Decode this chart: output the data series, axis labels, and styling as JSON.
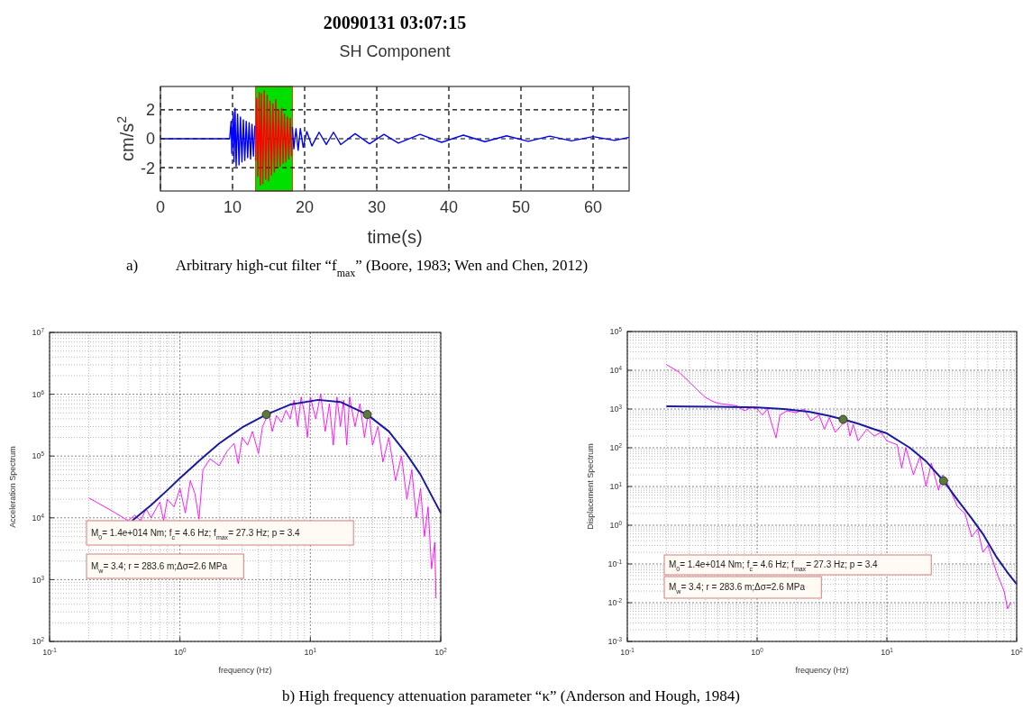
{
  "chart_data": [
    {
      "type": "line",
      "title": "20090131 03:07:15",
      "subtitle": "SH Component",
      "xlabel": "time(s)",
      "ylabel": "cm/s$^{2}$",
      "xlim": [
        0,
        65
      ],
      "ylim": [
        -3.6,
        3.6
      ],
      "xticks": [
        0,
        10,
        20,
        30,
        40,
        50,
        60
      ],
      "yticks": [
        -2,
        0,
        2
      ],
      "grid": true,
      "line_style": "solid",
      "bands": [
        {
          "axis": "x",
          "from": 13.2,
          "to": 18.3,
          "color": "#00e000"
        }
      ],
      "annotations": [
        "a)          Arbitrary high-cut filter “f$_{max}$” (Boore, 1983; Wen and Chen, 2012)"
      ],
      "series": [
        {
          "color": "#0000ff",
          "x": [
            0,
            9.6,
            9.8,
            9.9,
            10.1,
            10.2,
            10.35,
            10.5,
            10.7,
            10.9,
            11.1,
            11.3,
            11.5,
            11.7,
            11.9,
            12.1,
            12.3,
            12.5,
            12.7,
            12.9,
            13.1
          ],
          "values": [
            0,
            0,
            1.2,
            -1.0,
            1.8,
            -1.6,
            2.1,
            -1.9,
            1.7,
            -1.8,
            1.5,
            -1.6,
            1.3,
            -1.5,
            1.2,
            -1.3,
            1.1,
            -1.4,
            1.0,
            -1.2,
            0.9
          ]
        },
        {
          "color": "#ff0000",
          "x": [
            13.2,
            13.35,
            13.5,
            13.7,
            13.85,
            14.0,
            14.2,
            14.4,
            14.6,
            14.8,
            15.0,
            15.2,
            15.4,
            15.6,
            15.8,
            16.0,
            16.2,
            16.4,
            16.6,
            16.8,
            17.0,
            17.2,
            17.4,
            17.6,
            17.8,
            18.0,
            18.2
          ],
          "values": [
            -1.5,
            2.8,
            -2.6,
            3.2,
            -3.2,
            3.1,
            -3.1,
            3.3,
            -2.8,
            3.0,
            -2.9,
            2.6,
            -2.5,
            2.4,
            -2.3,
            2.7,
            -2.0,
            2.0,
            -1.9,
            2.1,
            -1.7,
            1.7,
            -1.6,
            1.5,
            -1.4,
            1.4,
            -1.2
          ]
        },
        {
          "color": "#0000ff",
          "x": [
            18.3,
            18.5,
            18.8,
            19.1,
            19.4,
            19.8,
            20.3,
            21,
            22,
            23,
            24,
            25,
            27,
            29,
            31,
            33,
            36,
            39,
            42,
            45,
            48,
            51,
            54,
            57,
            60,
            63,
            65
          ],
          "values": [
            0.8,
            -0.7,
            0.7,
            -0.8,
            0.7,
            -0.6,
            0.5,
            -0.5,
            0.45,
            -0.4,
            0.45,
            -0.4,
            0.35,
            -0.35,
            0.3,
            -0.3,
            0.3,
            -0.25,
            0.25,
            -0.2,
            0.2,
            -0.18,
            0.18,
            -0.15,
            0.15,
            -0.12,
            0.1
          ]
        }
      ]
    },
    {
      "type": "line",
      "xlabel": "frequency (Hz)",
      "ylabel": "Acceleration Spectrum",
      "log": "xy",
      "grid": true,
      "xlim": [
        0.1,
        100
      ],
      "ylim": [
        100,
        10000000
      ],
      "xticks": [
        {
          "value": 0.1,
          "label": "10$^{-1}$"
        },
        {
          "value": 1,
          "label": "10$^{0}$"
        },
        {
          "value": 10,
          "label": "10$^{1}$"
        },
        {
          "value": 100,
          "label": "10$^{2}$"
        }
      ],
      "yticks": [
        {
          "value": 100,
          "label": "10$^{2}$"
        },
        {
          "value": 1000,
          "label": "10$^{3}$"
        },
        {
          "value": 10000,
          "label": "10$^{4}$"
        },
        {
          "value": 100000,
          "label": "10$^{5}$"
        },
        {
          "value": 1000000,
          "label": "10$^{6}$"
        },
        {
          "value": 10000000,
          "label": "10$^{7}$"
        }
      ],
      "annotations": [
        "M$_{0}$= 1.4e+014 Nm;   f$_{c}$= 4.6 Hz;  f$_{max}$= 27.3 Hz; p = 3.4",
        "M$_{w}$= 3.4; r = 283.6 m;Δσ=2.6 MPa",
        "b) High frequency attenuation parameter “κ” (Anderson and Hough, 1984)"
      ],
      "series": [
        {
          "color": "#ff00ff",
          "x": [
            0.2,
            0.3,
            0.4,
            0.45,
            0.5,
            0.55,
            0.6,
            0.7,
            0.75,
            0.8,
            0.9,
            1.0,
            1.1,
            1.2,
            1.3,
            1.4,
            1.5,
            1.7,
            2.0,
            2.3,
            2.6,
            2.8,
            3.0,
            3.3,
            3.6,
            4.0,
            4.3,
            4.8,
            5.1,
            5.5,
            6,
            6.5,
            7,
            7.5,
            8,
            8.5,
            9,
            9.5,
            10,
            11,
            12,
            13,
            14,
            15,
            16,
            17,
            18,
            19,
            20,
            22,
            24,
            26,
            28,
            30,
            33,
            36,
            40,
            45,
            50,
            55,
            60,
            65,
            70,
            75,
            80,
            85,
            90,
            92
          ],
          "values": [
            21000,
            13000,
            9000,
            11000,
            9000,
            14000,
            10000,
            18000,
            9000,
            20000,
            15000,
            30000,
            12000,
            40000,
            25000,
            9500,
            60000,
            90000,
            70000,
            120000,
            160000,
            75000,
            200000,
            150000,
            250000,
            110000,
            300000,
            500000,
            250000,
            450000,
            350000,
            550000,
            400000,
            800000,
            300000,
            900000,
            500000,
            200000,
            900000,
            400000,
            1000000,
            250000,
            700000,
            150000,
            900000,
            300000,
            800000,
            150000,
            900000,
            300000,
            700000,
            200000,
            550000,
            150000,
            300000,
            80000,
            200000,
            40000,
            100000,
            20000,
            60000,
            10000,
            30000,
            5000,
            15000,
            1500,
            4000,
            500
          ]
        },
        {
          "color": "#1a1aa0",
          "x": [
            0.43,
            0.6,
            0.8,
            1,
            1.5,
            2,
            3,
            4.6,
            7,
            11.5,
            17,
            27.3,
            40,
            54,
            70,
            100
          ],
          "values": [
            9000,
            16000,
            28000,
            44000,
            95000,
            160000,
            290000,
            470000,
            680000,
            810000,
            750000,
            470000,
            250000,
            112000,
            50000,
            12000
          ]
        },
        {
          "type": "scatter",
          "color": "#5a7a3a",
          "x": [
            4.6,
            27.3
          ],
          "values": [
            470000,
            470000
          ]
        }
      ]
    },
    {
      "type": "line",
      "xlabel": "frequency (Hz)",
      "ylabel": "Displacement Spectrum",
      "log": "xy",
      "grid": true,
      "xlim": [
        0.1,
        100
      ],
      "ylim": [
        0.001,
        100000
      ],
      "xticks": [
        {
          "value": 0.1,
          "label": "10$^{-1}$"
        },
        {
          "value": 1,
          "label": "10$^{0}$"
        },
        {
          "value": 10,
          "label": "10$^{1}$"
        },
        {
          "value": 100,
          "label": "10$^{2}$"
        }
      ],
      "yticks": [
        {
          "value": 0.001,
          "label": "10$^{-3}$"
        },
        {
          "value": 0.01,
          "label": "10$^{-2}$"
        },
        {
          "value": 0.1,
          "label": "10$^{-1}$"
        },
        {
          "value": 1,
          "label": "10$^{0}$"
        },
        {
          "value": 10,
          "label": "10$^{1}$"
        },
        {
          "value": 100,
          "label": "10$^{2}$"
        },
        {
          "value": 1000,
          "label": "10$^{3}$"
        },
        {
          "value": 10000,
          "label": "10$^{4}$"
        },
        {
          "value": 100000,
          "label": "10$^{5}$"
        }
      ],
      "annotations": [
        "M$_{0}$= 1.4e+014 Nm;   f$_{c}$= 4.6 Hz;  f$_{max}$= 27.3 Hz; p = 3.4",
        "M$_{w}$= 3.4; r = 283.6 m;Δσ=2.6 MPa"
      ],
      "series": [
        {
          "color": "#ff00ff",
          "x": [
            0.2,
            0.25,
            0.3,
            0.35,
            0.4,
            0.45,
            0.5,
            0.6,
            0.7,
            0.8,
            0.9,
            1.0,
            1.1,
            1.2,
            1.3,
            1.4,
            1.5,
            1.7,
            2.0,
            2.3,
            2.6,
            3.0,
            3.3,
            3.6,
            4.0,
            4.9,
            5.2,
            5.5,
            6,
            7,
            8,
            9,
            10,
            12,
            13,
            14,
            16,
            18,
            20,
            22,
            25,
            27,
            30,
            35,
            40,
            45,
            50,
            55,
            60,
            70,
            80,
            85,
            90
          ],
          "values": [
            14000,
            9000,
            5000,
            3000,
            2000,
            1600,
            1400,
            1300,
            1200,
            900,
            1100,
            1000,
            700,
            1000,
            400,
            180,
            700,
            900,
            800,
            1000,
            500,
            700,
            300,
            600,
            250,
            550,
            200,
            400,
            150,
            300,
            200,
            250,
            150,
            120,
            30,
            100,
            20,
            60,
            10,
            40,
            8,
            20,
            10,
            3,
            2,
            0.5,
            0.8,
            0.2,
            0.3,
            0.06,
            0.02,
            0.007,
            0.01
          ]
        },
        {
          "color": "#1a1aa0",
          "x": [
            0.2,
            0.5,
            1,
            1.6,
            2.5,
            3.5,
            4.6,
            6,
            8,
            10,
            15,
            20,
            27.3,
            35,
            45,
            55,
            70,
            85,
            100
          ],
          "values": [
            1170,
            1150,
            1100,
            1000,
            850,
            680,
            540,
            420,
            300,
            235,
            100,
            45,
            14,
            4.5,
            1.5,
            0.59,
            0.15,
            0.06,
            0.03
          ]
        },
        {
          "type": "scatter",
          "color": "#5a7a3a",
          "x": [
            4.6,
            27.3
          ],
          "values": [
            540,
            14
          ]
        }
      ]
    }
  ]
}
